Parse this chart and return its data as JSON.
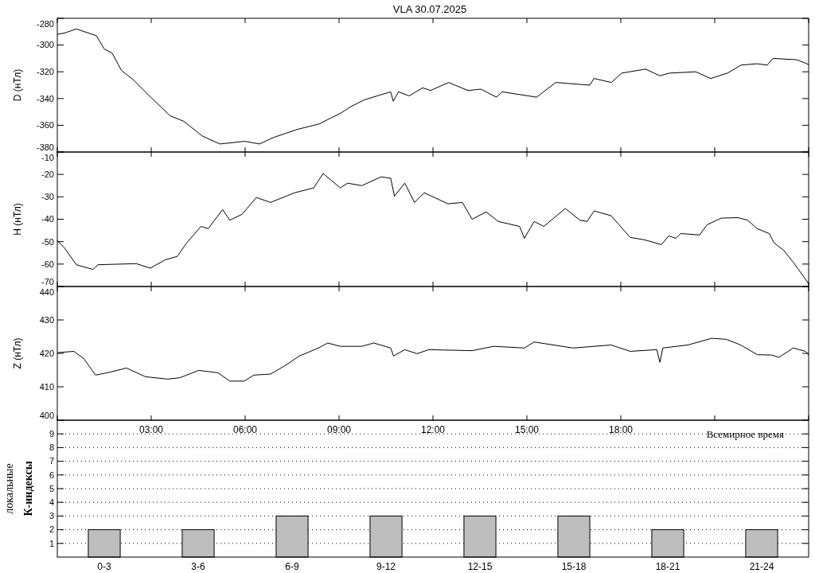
{
  "chart_data": [
    {
      "type": "line",
      "title": "VLA   30.07.2025",
      "ylabel": "D (нТл)",
      "xlim": [
        0,
        24
      ],
      "xticks": [
        {
          "value": 0,
          "label": null
        },
        {
          "value": 3,
          "label": null
        },
        {
          "value": 6,
          "label": null
        },
        {
          "value": 9,
          "label": null
        },
        {
          "value": 12,
          "label": null
        },
        {
          "value": 15,
          "label": null
        },
        {
          "value": 18,
          "label": null
        },
        {
          "value": 21,
          "label": null
        },
        {
          "value": 24,
          "label": null
        }
      ],
      "ylim": [
        -380,
        -280
      ],
      "yticks": [
        -380,
        -360,
        -340,
        -320,
        -300,
        -280
      ],
      "tick_labels": "y",
      "series": [
        {
          "color": "#000000",
          "x": [
            0,
            0.23,
            0.61,
            1.25,
            1.5,
            1.75,
            2.05,
            2.43,
            3.03,
            3.61,
            4.04,
            4.63,
            5.19,
            5.99,
            6.46,
            6.92,
            7.68,
            8.37,
            8.7,
            9.05,
            9.38,
            9.81,
            10.22,
            10.65,
            10.73,
            10.9,
            11.24,
            11.67,
            11.92,
            12.5,
            13.12,
            13.53,
            14.03,
            14.21,
            15.31,
            15.92,
            17.01,
            17.14,
            17.7,
            18.03,
            18.79,
            19.25,
            19.55,
            20.39,
            20.87,
            21.41,
            21.84,
            22.35,
            22.68,
            22.86,
            23.62,
            23.95,
            24
          ],
          "values": [
            -292,
            -291,
            -288,
            -293,
            -303,
            -306,
            -319,
            -326,
            -340,
            -353,
            -357,
            -368,
            -374,
            -372,
            -374,
            -369,
            -363,
            -359,
            -355,
            -351,
            -346,
            -341,
            -338,
            -335,
            -342,
            -335,
            -338,
            -332,
            -334,
            -328,
            -334,
            -333,
            -339,
            -335,
            -339,
            -328,
            -330,
            -325,
            -328,
            -321,
            -318,
            -323,
            -321,
            -320,
            -325,
            -321,
            -315,
            -314,
            -315,
            -310,
            -311,
            -314,
            -315
          ]
        }
      ]
    },
    {
      "type": "line",
      "ylabel": "H (нТл)",
      "xlim": [
        0,
        24
      ],
      "xticks": [
        {
          "value": 0,
          "label": null
        },
        {
          "value": 3,
          "label": null
        },
        {
          "value": 6,
          "label": null
        },
        {
          "value": 9,
          "label": null
        },
        {
          "value": 12,
          "label": null
        },
        {
          "value": 15,
          "label": null
        },
        {
          "value": 18,
          "label": null
        },
        {
          "value": 21,
          "label": null
        },
        {
          "value": 24,
          "label": null
        }
      ],
      "ylim": [
        -70,
        -10
      ],
      "yticks": [
        -70,
        -60,
        -50,
        -40,
        -30,
        -20,
        -10
      ],
      "tick_labels": "y",
      "series": [
        {
          "color": "#000000",
          "x": [
            0,
            0.23,
            0.61,
            1.14,
            1.3,
            2.52,
            2.97,
            3.45,
            3.83,
            4.13,
            4.59,
            4.82,
            5.28,
            5.51,
            5.9,
            6.36,
            6.81,
            7.58,
            8.19,
            8.49,
            9.04,
            9.27,
            9.73,
            10.34,
            10.65,
            10.77,
            11.1,
            11.41,
            11.72,
            12.48,
            12.94,
            13.25,
            13.7,
            14.09,
            14.77,
            14.92,
            15.23,
            15.54,
            16.23,
            16.69,
            16.92,
            17.15,
            17.69,
            18.3,
            18.76,
            19.3,
            19.53,
            19.76,
            19.91,
            20.52,
            20.75,
            21.21,
            21.74,
            22.05,
            22.36,
            22.74,
            22.9,
            23.2,
            23.51,
            23.82,
            24
          ],
          "values": [
            -49.5,
            -52.8,
            -60.3,
            -62.4,
            -60.3,
            -59.8,
            -61.8,
            -58.1,
            -56.6,
            -50.6,
            -43.2,
            -44.2,
            -35.7,
            -40.4,
            -37.8,
            -30.3,
            -32.5,
            -28.2,
            -26,
            -19.6,
            -26,
            -23.9,
            -25,
            -21.1,
            -21.7,
            -29.7,
            -23.9,
            -32.5,
            -28.2,
            -33.1,
            -32.5,
            -40,
            -36.7,
            -41,
            -43.2,
            -48.5,
            -41,
            -43.2,
            -35.2,
            -40.4,
            -41,
            -36.3,
            -38.4,
            -48.1,
            -49.2,
            -51.3,
            -47.4,
            -48.5,
            -46.4,
            -47,
            -42.5,
            -39.5,
            -39.3,
            -40.4,
            -44.2,
            -46.4,
            -50.6,
            -53.8,
            -59.2,
            -65.2,
            -68.8
          ]
        }
      ]
    },
    {
      "type": "line",
      "ylabel": "Z (нТл)",
      "xlabel": "Всемирное время",
      "xlim": [
        0,
        24
      ],
      "xticks": [
        {
          "value": 0,
          "label": null
        },
        {
          "value": 3,
          "label": "03:00"
        },
        {
          "value": 6,
          "label": "06:00"
        },
        {
          "value": 9,
          "label": "09:00"
        },
        {
          "value": 12,
          "label": "12:00"
        },
        {
          "value": 15,
          "label": "15:00"
        },
        {
          "value": 18,
          "label": "18:00"
        },
        {
          "value": 21,
          "label": null
        },
        {
          "value": 24,
          "label": null
        }
      ],
      "ylim": [
        400,
        440
      ],
      "yticks": [
        400,
        410,
        420,
        430,
        440
      ],
      "series": [
        {
          "color": "#000000",
          "x": [
            0,
            0.53,
            0.84,
            1.22,
            1.6,
            2.21,
            2.82,
            3.52,
            3.91,
            4.52,
            5.13,
            5.51,
            5.97,
            6.28,
            6.81,
            7.27,
            7.73,
            8.34,
            8.64,
            9.04,
            9.73,
            10.11,
            10.65,
            10.74,
            11.1,
            11.49,
            11.87,
            13.25,
            13.94,
            14.92,
            15.23,
            16.47,
            17.69,
            18.3,
            19.15,
            19.25,
            19.34,
            20.14,
            20.9,
            21.37,
            21.83,
            22.36,
            22.82,
            23.05,
            23.51,
            23.9,
            24
          ],
          "values": [
            420.2,
            420.6,
            418.5,
            413.5,
            414.2,
            415.6,
            413,
            412.3,
            412.7,
            414.9,
            414.2,
            411.7,
            411.7,
            413.5,
            413.8,
            416.3,
            419.2,
            421.6,
            423.1,
            422.1,
            422.1,
            423.1,
            421.6,
            419.2,
            421.1,
            419.9,
            421.1,
            420.8,
            422.1,
            421.6,
            423.4,
            421.6,
            422.5,
            420.6,
            421.1,
            417.3,
            421.6,
            422.5,
            424.5,
            424.2,
            422.5,
            419.6,
            419.5,
            418.8,
            421.6,
            420.6,
            419.5
          ]
        }
      ]
    },
    {
      "type": "bar",
      "ylabel": "локальные\nК-индексы",
      "categories": [
        "0-3",
        "3-6",
        "6-9",
        "9-12",
        "12-15",
        "15-18",
        "18-21",
        "21-24"
      ],
      "values": [
        2,
        2,
        3,
        3,
        3,
        3,
        2,
        2
      ],
      "color": "#bebebe",
      "ylim": [
        0,
        10
      ],
      "yticks": [
        1,
        2,
        3,
        4,
        5,
        6,
        7,
        8,
        9
      ],
      "grid": "y"
    }
  ]
}
